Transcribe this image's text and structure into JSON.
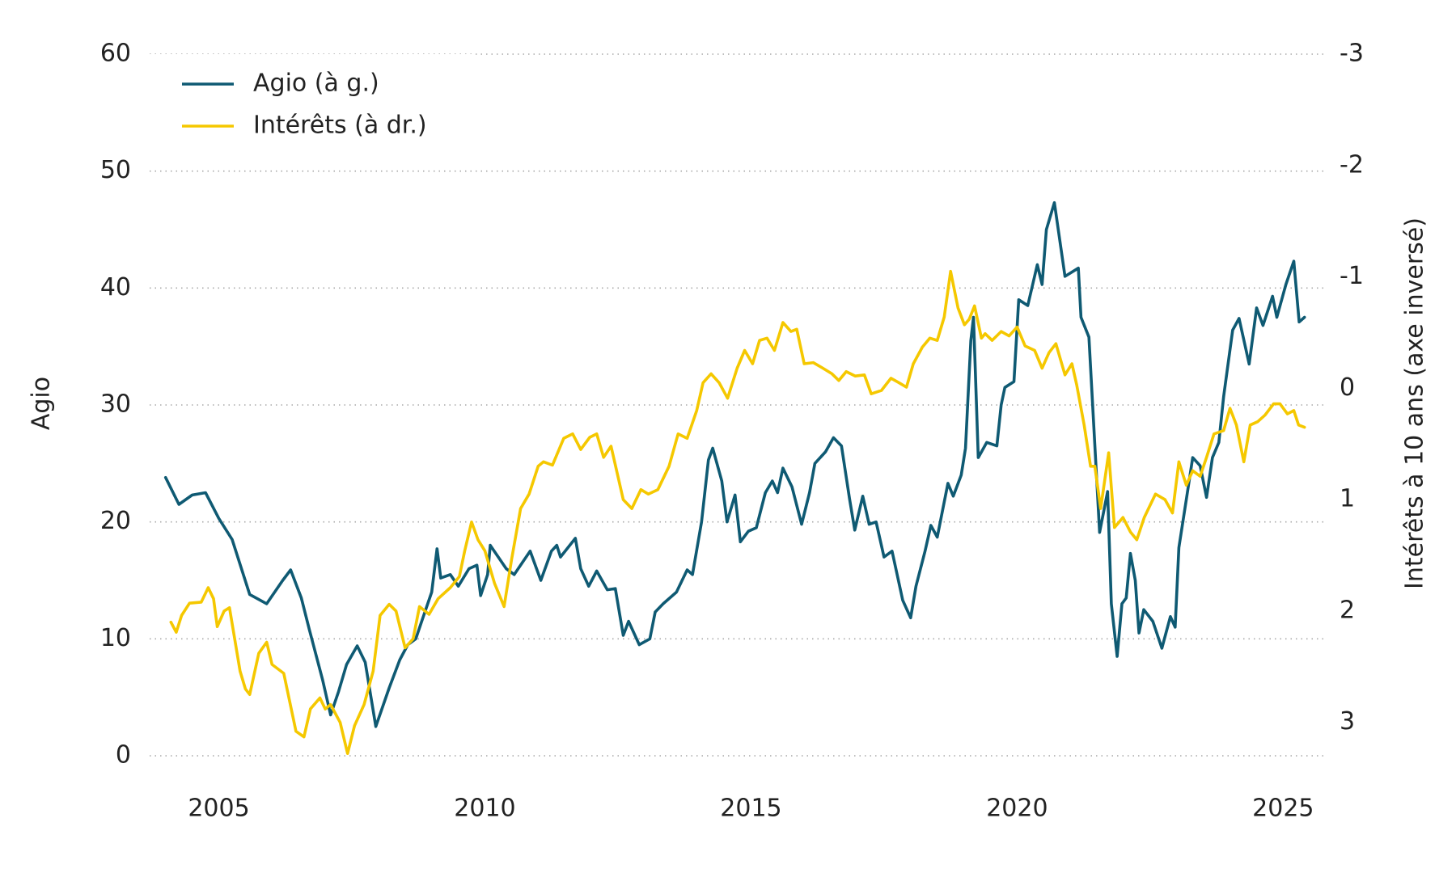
{
  "chart_data": {
    "type": "line",
    "y_label": "Agio",
    "y2_label": "Intérêts à 10 ans (axe inversé)",
    "xlim": [
      2003.7,
      2025.8
    ],
    "xticks": [
      2005,
      2010,
      2015,
      2020,
      2025
    ],
    "ylim": [
      0,
      60
    ],
    "yticks": [
      0,
      10,
      20,
      30,
      40,
      50,
      60
    ],
    "y2lim": [
      3.3,
      -3
    ],
    "y2ticks": [
      -3,
      -2,
      -1,
      0,
      1,
      2,
      3
    ],
    "grid": true,
    "legend": "top-left",
    "series": [
      {
        "name": "Agio (à g.)",
        "color": "#0f5a73",
        "axis": "y",
        "x": [
          2004.0,
          2004.25,
          2004.5,
          2004.75,
          2005.0,
          2005.25,
          2005.58,
          2005.9,
          2006.2,
          2006.35,
          2006.55,
          2006.7,
          2006.95,
          2007.1,
          2007.25,
          2007.4,
          2007.6,
          2007.75,
          2007.95,
          2008.2,
          2008.4,
          2008.55,
          2008.7,
          2008.85,
          2009.0,
          2009.1,
          2009.17,
          2009.35,
          2009.5,
          2009.7,
          2009.85,
          2009.92,
          2010.05,
          2010.1,
          2010.4,
          2010.55,
          2010.85,
          2011.05,
          2011.25,
          2011.35,
          2011.42,
          2011.7,
          2011.8,
          2011.95,
          2012.1,
          2012.3,
          2012.45,
          2012.6,
          2012.7,
          2012.9,
          2013.1,
          2013.2,
          2013.35,
          2013.6,
          2013.8,
          2013.9,
          2014.07,
          2014.2,
          2014.28,
          2014.45,
          2014.55,
          2014.7,
          2014.8,
          2014.95,
          2015.1,
          2015.27,
          2015.4,
          2015.5,
          2015.6,
          2015.77,
          2015.95,
          2016.1,
          2016.2,
          2016.4,
          2016.55,
          2016.7,
          2016.85,
          2016.95,
          2017.1,
          2017.22,
          2017.35,
          2017.5,
          2017.65,
          2017.85,
          2018.0,
          2018.1,
          2018.27,
          2018.38,
          2018.5,
          2018.7,
          2018.8,
          2018.95,
          2019.03,
          2019.13,
          2019.18,
          2019.27,
          2019.43,
          2019.62,
          2019.7,
          2019.77,
          2019.94,
          2020.03,
          2020.2,
          2020.38,
          2020.47,
          2020.55,
          2020.7,
          2020.9,
          2021.15,
          2021.2,
          2021.35,
          2021.55,
          2021.7,
          2021.77,
          2021.88,
          2021.97,
          2022.05,
          2022.13,
          2022.22,
          2022.29,
          2022.38,
          2022.55,
          2022.72,
          2022.88,
          2022.97,
          2023.04,
          2023.2,
          2023.3,
          2023.44,
          2023.56,
          2023.67,
          2023.79,
          2023.88,
          2024.05,
          2024.17,
          2024.36,
          2024.5,
          2024.62,
          2024.8,
          2024.88,
          2025.05,
          2025.2,
          2025.3,
          2025.4
        ],
        "values": [
          23.8,
          21.5,
          22.3,
          22.5,
          20.3,
          18.5,
          13.8,
          13,
          15,
          15.9,
          13.5,
          10.8,
          6.5,
          3.5,
          5.5,
          7.8,
          9.4,
          8,
          2.5,
          5.8,
          8.2,
          9.5,
          10,
          12,
          14,
          17.7,
          15.2,
          15.5,
          14.5,
          16,
          16.3,
          13.7,
          15.5,
          18,
          16,
          15.5,
          17.5,
          15,
          17.5,
          18,
          17,
          18.6,
          16,
          14.5,
          15.8,
          14.2,
          14.3,
          10.3,
          11.5,
          9.5,
          10,
          12.3,
          13,
          14,
          15.9,
          15.5,
          20,
          25.3,
          26.3,
          23.5,
          20,
          22.3,
          18.3,
          19.2,
          19.5,
          22.5,
          23.5,
          22.5,
          24.6,
          23,
          19.8,
          22.5,
          25,
          26,
          27.2,
          26.5,
          22,
          19.3,
          22.2,
          19.8,
          20,
          17,
          17.5,
          13.3,
          11.8,
          14.5,
          17.5,
          19.7,
          18.7,
          23.3,
          22.2,
          24,
          26.3,
          35.5,
          37.5,
          25.5,
          26.8,
          26.5,
          30,
          31.5,
          32,
          39,
          38.5,
          42,
          40.3,
          45,
          47.3,
          41,
          41.7,
          37.5,
          35.8,
          19.1,
          22.6,
          13,
          8.5,
          13,
          13.5,
          17.3,
          15,
          10.5,
          12.5,
          11.5,
          9.2,
          11.9,
          11,
          17.8,
          22.5,
          25.5,
          24.8,
          22.1,
          25.5,
          26.8,
          30.7,
          36.4,
          37.4,
          33.5,
          38.3,
          36.8,
          39.3,
          37.5,
          40.3,
          42.3,
          37.1,
          37.5
        ]
      },
      {
        "name": "Intérêts (à dr.)",
        "color": "#f5c800",
        "axis": "y2",
        "x": [
          2004.1,
          2004.2,
          2004.3,
          2004.45,
          2004.67,
          2004.8,
          2004.9,
          2004.97,
          2005.1,
          2005.2,
          2005.4,
          2005.5,
          2005.58,
          2005.75,
          2005.9,
          2006.0,
          2006.22,
          2006.45,
          2006.6,
          2006.72,
          2006.9,
          2007.0,
          2007.1,
          2007.28,
          2007.42,
          2007.55,
          2007.73,
          2007.9,
          2008.03,
          2008.2,
          2008.33,
          2008.5,
          2008.65,
          2008.77,
          2008.95,
          2009.12,
          2009.35,
          2009.52,
          2009.62,
          2009.75,
          2009.87,
          2010.0,
          2010.18,
          2010.36,
          2010.5,
          2010.67,
          2010.83,
          2011.0,
          2011.1,
          2011.27,
          2011.48,
          2011.65,
          2011.8,
          2011.97,
          2012.1,
          2012.23,
          2012.37,
          2012.6,
          2012.76,
          2012.93,
          2013.07,
          2013.25,
          2013.46,
          2013.63,
          2013.8,
          2013.98,
          2014.1,
          2014.25,
          2014.4,
          2014.56,
          2014.74,
          2014.88,
          2015.03,
          2015.16,
          2015.3,
          2015.44,
          2015.6,
          2015.75,
          2015.86,
          2016.0,
          2016.17,
          2016.35,
          2016.52,
          2016.65,
          2016.79,
          2016.96,
          2017.13,
          2017.26,
          2017.45,
          2017.63,
          2017.78,
          2017.92,
          2018.05,
          2018.22,
          2018.36,
          2018.5,
          2018.63,
          2018.75,
          2018.89,
          2019.01,
          2019.1,
          2019.2,
          2019.33,
          2019.4,
          2019.53,
          2019.7,
          2019.85,
          2020.0,
          2020.15,
          2020.33,
          2020.47,
          2020.6,
          2020.73,
          2020.9,
          2021.03,
          2021.12,
          2021.26,
          2021.38,
          2021.46,
          2021.57,
          2021.72,
          2021.83,
          2021.99,
          2022.13,
          2022.25,
          2022.39,
          2022.6,
          2022.78,
          2022.92,
          2023.04,
          2023.18,
          2023.3,
          2023.44,
          2023.56,
          2023.7,
          2023.88,
          2024.0,
          2024.12,
          2024.26,
          2024.38,
          2024.52,
          2024.66,
          2024.82,
          2024.94,
          2025.08,
          2025.2,
          2025.29,
          2025.4
        ],
        "values": [
          2.1,
          2.19,
          2.04,
          1.93,
          1.92,
          1.79,
          1.89,
          2.14,
          2.0,
          1.97,
          2.54,
          2.7,
          2.75,
          2.38,
          2.28,
          2.48,
          2.56,
          3.08,
          3.13,
          2.88,
          2.78,
          2.88,
          2.84,
          3.0,
          3.28,
          3.03,
          2.84,
          2.54,
          2.04,
          1.94,
          2.0,
          2.33,
          2.25,
          1.96,
          2.03,
          1.89,
          1.79,
          1.69,
          1.46,
          1.2,
          1.36,
          1.46,
          1.75,
          1.96,
          1.54,
          1.08,
          0.95,
          0.7,
          0.66,
          0.69,
          0.45,
          0.41,
          0.55,
          0.44,
          0.41,
          0.62,
          0.52,
          1.0,
          1.08,
          0.91,
          0.95,
          0.91,
          0.7,
          0.41,
          0.45,
          0.2,
          -0.05,
          -0.13,
          -0.05,
          0.09,
          -0.18,
          -0.34,
          -0.22,
          -0.43,
          -0.45,
          -0.34,
          -0.59,
          -0.51,
          -0.53,
          -0.22,
          -0.23,
          -0.18,
          -0.13,
          -0.07,
          -0.15,
          -0.11,
          -0.12,
          0.05,
          0.02,
          -0.09,
          -0.05,
          -0.01,
          -0.22,
          -0.37,
          -0.45,
          -0.43,
          -0.64,
          -1.05,
          -0.72,
          -0.57,
          -0.62,
          -0.74,
          -0.45,
          -0.49,
          -0.43,
          -0.51,
          -0.47,
          -0.55,
          -0.38,
          -0.34,
          -0.18,
          -0.32,
          -0.4,
          -0.12,
          -0.22,
          -0.03,
          0.33,
          0.7,
          0.7,
          1.08,
          0.58,
          1.25,
          1.16,
          1.29,
          1.36,
          1.16,
          0.95,
          1.0,
          1.12,
          0.66,
          0.87,
          0.74,
          0.79,
          0.62,
          0.41,
          0.38,
          0.18,
          0.33,
          0.66,
          0.33,
          0.3,
          0.24,
          0.14,
          0.14,
          0.23,
          0.2,
          0.33,
          0.35
        ]
      }
    ]
  }
}
